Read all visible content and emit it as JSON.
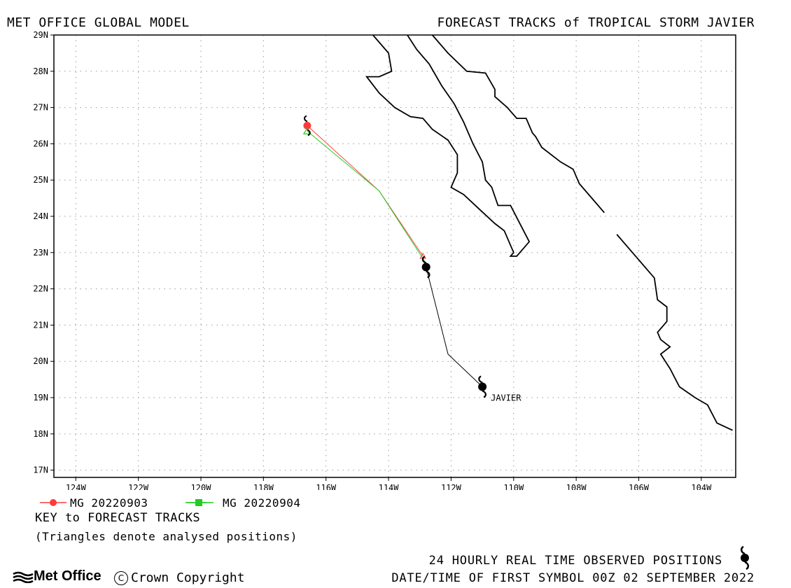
{
  "header": {
    "left": "MET OFFICE GLOBAL MODEL",
    "right": "FORECAST TRACKS of TROPICAL STORM JAVIER"
  },
  "map": {
    "lon_range": [
      -124.7,
      -102.9
    ],
    "lat_range": [
      16.8,
      29
    ],
    "lat_ticks": [
      "29N",
      "28N",
      "27N",
      "26N",
      "25N",
      "24N",
      "23N",
      "22N",
      "21N",
      "20N",
      "19N",
      "18N",
      "17N"
    ],
    "lon_ticks": [
      "124W",
      "122W",
      "120W",
      "118W",
      "116W",
      "114W",
      "112W",
      "110W",
      "108W",
      "106W",
      "104W"
    ],
    "storm_label": "JAVIER",
    "observed_track": [
      {
        "lon": -111.0,
        "lat": 19.3
      },
      {
        "lon": -112.1,
        "lat": 20.2
      },
      {
        "lon": -112.8,
        "lat": 22.6
      }
    ],
    "forecast_tracks": [
      {
        "name": "MG 20220903",
        "color": "#ff3b3b",
        "points": [
          {
            "lon": -112.9,
            "lat": 22.9
          },
          {
            "lon": -114.3,
            "lat": 24.7
          },
          {
            "lon": -116.6,
            "lat": 26.5
          }
        ]
      },
      {
        "name": "MG 20220904",
        "color": "#22cc22",
        "points": [
          {
            "lon": -112.8,
            "lat": 22.7
          },
          {
            "lon": -114.3,
            "lat": 24.7
          },
          {
            "lon": -116.6,
            "lat": 26.35
          }
        ]
      }
    ],
    "coastlines": [
      [
        [
          -114.5,
          29
        ],
        [
          -114.0,
          28.5
        ],
        [
          -113.9,
          28.0
        ],
        [
          -114.3,
          27.85
        ],
        [
          -114.7,
          27.85
        ],
        [
          -114.3,
          27.4
        ],
        [
          -113.8,
          27.0
        ],
        [
          -113.3,
          26.75
        ],
        [
          -112.9,
          26.7
        ],
        [
          -112.6,
          26.4
        ],
        [
          -112.1,
          26.1
        ],
        [
          -111.8,
          25.7
        ],
        [
          -111.8,
          25.2
        ],
        [
          -112.0,
          24.8
        ],
        [
          -111.6,
          24.6
        ],
        [
          -111.1,
          24.2
        ],
        [
          -110.6,
          23.8
        ],
        [
          -110.3,
          23.6
        ],
        [
          -110.0,
          23.0
        ],
        [
          -110.1,
          22.9
        ],
        [
          -109.9,
          22.9
        ],
        [
          -109.5,
          23.3
        ],
        [
          -109.8,
          23.8
        ],
        [
          -110.1,
          24.3
        ],
        [
          -110.5,
          24.3
        ],
        [
          -110.7,
          24.8
        ],
        [
          -110.9,
          25.0
        ],
        [
          -111.0,
          25.5
        ],
        [
          -111.3,
          26.0
        ],
        [
          -111.6,
          26.6
        ],
        [
          -111.9,
          27.1
        ],
        [
          -112.3,
          27.6
        ],
        [
          -112.7,
          28.2
        ],
        [
          -113.1,
          28.6
        ],
        [
          -113.4,
          29
        ]
      ],
      [
        [
          -112.6,
          29
        ],
        [
          -112.1,
          28.5
        ],
        [
          -111.5,
          28.0
        ],
        [
          -110.9,
          27.95
        ],
        [
          -110.6,
          27.5
        ],
        [
          -110.6,
          27.3
        ],
        [
          -110.2,
          27.0
        ],
        [
          -109.9,
          26.7
        ],
        [
          -109.6,
          26.7
        ],
        [
          -109.4,
          26.3
        ],
        [
          -109.3,
          26.2
        ],
        [
          -109.1,
          25.9
        ],
        [
          -108.5,
          25.5
        ],
        [
          -108.1,
          25.3
        ],
        [
          -107.9,
          24.9
        ],
        [
          -107.5,
          24.5
        ],
        [
          -107.1,
          24.1
        ]
      ],
      [
        [
          -106.7,
          23.5
        ],
        [
          -106.0,
          22.8
        ],
        [
          -105.5,
          22.3
        ],
        [
          -105.4,
          21.7
        ],
        [
          -105.1,
          21.5
        ],
        [
          -105.1,
          21.1
        ],
        [
          -105.4,
          20.8
        ],
        [
          -105.3,
          20.6
        ],
        [
          -105.0,
          20.4
        ],
        [
          -105.3,
          20.2
        ],
        [
          -105.0,
          19.8
        ],
        [
          -104.7,
          19.3
        ],
        [
          -104.2,
          19.0
        ],
        [
          -103.8,
          18.8
        ],
        [
          -103.5,
          18.3
        ],
        [
          -103.0,
          18.1
        ]
      ]
    ]
  },
  "legend": {
    "series1": "MG 20220903",
    "series2": "MG 20220904",
    "key_title": "KEY to FORECAST TRACKS",
    "key_note": "(Triangles denote analysed positions)"
  },
  "footer": {
    "observed": "24 HOURLY REAL TIME OBSERVED POSITIONS",
    "datetime": "DATE/TIME OF FIRST SYMBOL 00Z 02 SEPTEMBER 2022",
    "logo": "Met Office",
    "copyright": "Crown Copyright"
  }
}
